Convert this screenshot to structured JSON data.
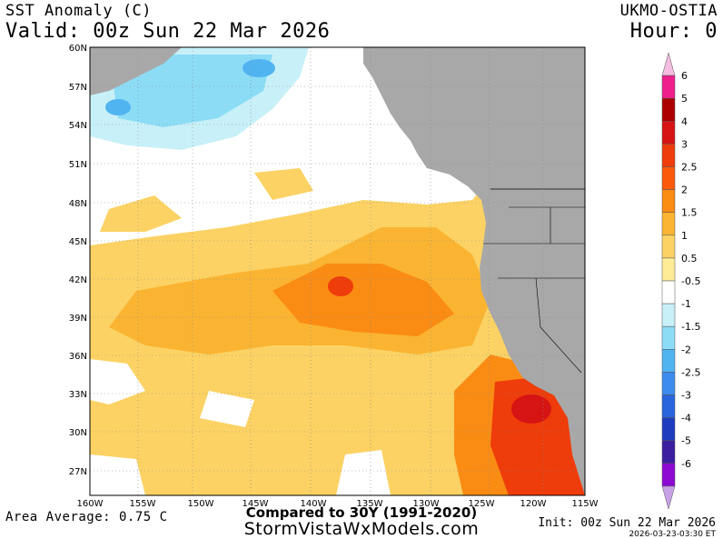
{
  "header": {
    "title": "SST Anomaly (C)",
    "valid": "Valid: 00z Sun 22 Mar 2026",
    "model": "UKMO-OSTIA",
    "hour": "Hour: 0"
  },
  "map": {
    "lat_labels": [
      "60N",
      "57N",
      "54N",
      "51N",
      "48N",
      "45N",
      "42N",
      "39N",
      "36N",
      "33N",
      "30N",
      "27N"
    ],
    "lon_labels": [
      "160W",
      "155W",
      "150W",
      "145W",
      "140W",
      "135W",
      "130W",
      "125W",
      "120W",
      "115W"
    ],
    "colors": {
      "land": "#a8a8a8",
      "ocean_neutral": "#ffffff",
      "grid": "#888888",
      "borders": "#000000"
    }
  },
  "colorbar": {
    "labels": [
      "6",
      "5",
      "4",
      "3",
      "2.5",
      "2",
      "1.5",
      "1",
      "0.5",
      "-0.5",
      "-1",
      "-1.5",
      "-2",
      "-2.5",
      "-3",
      "-4",
      "-5",
      "-6"
    ],
    "colors": [
      "#f4bce0",
      "#ee1e8c",
      "#aa0000",
      "#d61414",
      "#ee3c0a",
      "#fa5a0a",
      "#fa8c14",
      "#fab432",
      "#fcd264",
      "#ffec96",
      "#ffffff",
      "#c8f0f8",
      "#8cdcf6",
      "#50b4f0",
      "#3c8cf0",
      "#2864dc",
      "#1e3cbe",
      "#3c1ea0",
      "#8c0ad2",
      "#c8a0e6"
    ]
  },
  "footer": {
    "area_average": "Area Average: 0.75 C",
    "compared": "Compared to 30Y (1991-2020)",
    "site": "StormVistaWxModels.com",
    "init": "Init: 00z Sun 22 Mar 2026",
    "timestamp": "2026-03-23-03:30 ET"
  }
}
